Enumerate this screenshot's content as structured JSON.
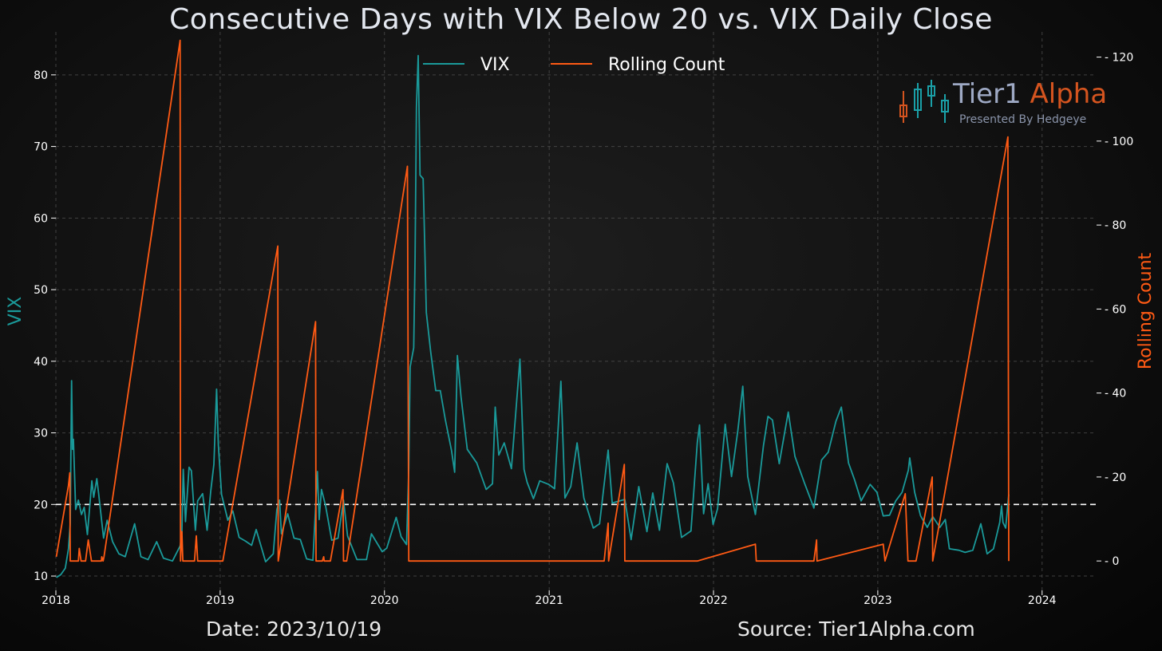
{
  "title": "Consecutive Days with VIX Below 20 vs. VIX Daily Close",
  "footer": {
    "date": "Date: 2023/10/19",
    "source": "Source: Tier1Alpha.com"
  },
  "logo": {
    "name_a": "Tier1",
    "name_b": "Alpha",
    "tagline": "Presented By Hedgeye"
  },
  "colors": {
    "vix": "#1a9a9a",
    "rolling": "#ff5a14",
    "threshold": "#ffffff",
    "grid": "#555555",
    "tick": "#ffffff"
  },
  "chart_data": {
    "type": "line",
    "xlabel": "",
    "ylabel": "VIX",
    "y2label": "Rolling Count",
    "xlim": [
      "2018-01-01",
      "2024-05-01"
    ],
    "ylim": [
      8,
      86
    ],
    "y2lim": [
      -7,
      126
    ],
    "xticks": [
      "2018",
      "2019",
      "2020",
      "2021",
      "2022",
      "2023",
      "2024"
    ],
    "yticks": [
      10,
      20,
      30,
      40,
      50,
      60,
      70,
      80
    ],
    "y2ticks": [
      0,
      20,
      40,
      60,
      80,
      100,
      120
    ],
    "threshold": 20,
    "legend": {
      "position": "top-center"
    },
    "grid": true,
    "series": [
      {
        "name": "VIX",
        "axis": "left",
        "points": [
          [
            "2018-01-02",
            9.8
          ],
          [
            "2018-01-12",
            10.2
          ],
          [
            "2018-01-22",
            11.1
          ],
          [
            "2018-01-29",
            13.8
          ],
          [
            "2018-02-02",
            17.3
          ],
          [
            "2018-02-05",
            37.3
          ],
          [
            "2018-02-07",
            27.7
          ],
          [
            "2018-02-09",
            29.1
          ],
          [
            "2018-02-14",
            19.3
          ],
          [
            "2018-02-20",
            20.6
          ],
          [
            "2018-02-27",
            18.6
          ],
          [
            "2018-03-05",
            19.6
          ],
          [
            "2018-03-12",
            15.8
          ],
          [
            "2018-03-22",
            23.3
          ],
          [
            "2018-03-26",
            21.0
          ],
          [
            "2018-04-02",
            23.6
          ],
          [
            "2018-04-06",
            21.5
          ],
          [
            "2018-04-17",
            15.3
          ],
          [
            "2018-04-25",
            17.8
          ],
          [
            "2018-05-07",
            14.8
          ],
          [
            "2018-05-21",
            13.1
          ],
          [
            "2018-06-04",
            12.7
          ],
          [
            "2018-06-25",
            17.3
          ],
          [
            "2018-07-09",
            12.7
          ],
          [
            "2018-07-25",
            12.3
          ],
          [
            "2018-08-13",
            14.8
          ],
          [
            "2018-08-28",
            12.5
          ],
          [
            "2018-09-17",
            12.1
          ],
          [
            "2018-10-04",
            14.2
          ],
          [
            "2018-10-08",
            16.0
          ],
          [
            "2018-10-11",
            24.9
          ],
          [
            "2018-10-16",
            17.6
          ],
          [
            "2018-10-24",
            25.2
          ],
          [
            "2018-10-29",
            24.7
          ],
          [
            "2018-11-07",
            16.4
          ],
          [
            "2018-11-12",
            20.5
          ],
          [
            "2018-11-23",
            21.5
          ],
          [
            "2018-12-03",
            16.4
          ],
          [
            "2018-12-11",
            21.8
          ],
          [
            "2018-12-18",
            25.6
          ],
          [
            "2018-12-24",
            36.1
          ],
          [
            "2018-12-28",
            28.3
          ],
          [
            "2019-01-04",
            21.4
          ],
          [
            "2019-01-18",
            17.8
          ],
          [
            "2019-01-29",
            19.1
          ],
          [
            "2019-02-12",
            15.4
          ],
          [
            "2019-02-26",
            14.9
          ],
          [
            "2019-03-12",
            14.3
          ],
          [
            "2019-03-22",
            16.5
          ],
          [
            "2019-04-12",
            12.0
          ],
          [
            "2019-04-29",
            13.1
          ],
          [
            "2019-05-07",
            19.3
          ],
          [
            "2019-05-13",
            20.6
          ],
          [
            "2019-05-17",
            15.9
          ],
          [
            "2019-05-31",
            18.7
          ],
          [
            "2019-06-14",
            15.3
          ],
          [
            "2019-06-28",
            15.1
          ],
          [
            "2019-07-12",
            12.4
          ],
          [
            "2019-07-26",
            12.2
          ],
          [
            "2019-08-05",
            24.6
          ],
          [
            "2019-08-09",
            17.9
          ],
          [
            "2019-08-14",
            22.1
          ],
          [
            "2019-08-23",
            19.9
          ],
          [
            "2019-09-06",
            15.0
          ],
          [
            "2019-09-20",
            15.3
          ],
          [
            "2019-10-02",
            20.6
          ],
          [
            "2019-10-11",
            15.6
          ],
          [
            "2019-11-01",
            12.3
          ],
          [
            "2019-11-22",
            12.3
          ],
          [
            "2019-12-03",
            15.9
          ],
          [
            "2019-12-27",
            13.4
          ],
          [
            "2020-01-06",
            13.9
          ],
          [
            "2020-01-27",
            18.2
          ],
          [
            "2020-02-07",
            15.5
          ],
          [
            "2020-02-19",
            14.4
          ],
          [
            "2020-02-24",
            25.0
          ],
          [
            "2020-02-27",
            39.2
          ],
          [
            "2020-03-06",
            41.9
          ],
          [
            "2020-03-09",
            54.5
          ],
          [
            "2020-03-12",
            75.5
          ],
          [
            "2020-03-16",
            82.7
          ],
          [
            "2020-03-20",
            66.0
          ],
          [
            "2020-03-27",
            65.5
          ],
          [
            "2020-04-03",
            46.8
          ],
          [
            "2020-04-13",
            41.2
          ],
          [
            "2020-04-24",
            35.9
          ],
          [
            "2020-05-04",
            35.9
          ],
          [
            "2020-05-15",
            31.9
          ],
          [
            "2020-05-29",
            27.5
          ],
          [
            "2020-06-05",
            24.5
          ],
          [
            "2020-06-11",
            40.8
          ],
          [
            "2020-06-19",
            35.1
          ],
          [
            "2020-07-03",
            27.7
          ],
          [
            "2020-07-24",
            25.8
          ],
          [
            "2020-08-14",
            22.1
          ],
          [
            "2020-08-28",
            22.9
          ],
          [
            "2020-09-03",
            33.6
          ],
          [
            "2020-09-11",
            26.9
          ],
          [
            "2020-09-23",
            28.6
          ],
          [
            "2020-10-09",
            25.0
          ],
          [
            "2020-10-28",
            40.3
          ],
          [
            "2020-11-06",
            24.9
          ],
          [
            "2020-11-13",
            23.1
          ],
          [
            "2020-11-27",
            20.8
          ],
          [
            "2020-12-11",
            23.3
          ],
          [
            "2020-12-31",
            22.8
          ],
          [
            "2021-01-13",
            22.2
          ],
          [
            "2021-01-27",
            37.2
          ],
          [
            "2021-02-05",
            20.9
          ],
          [
            "2021-02-18",
            22.5
          ],
          [
            "2021-03-04",
            28.6
          ],
          [
            "2021-03-19",
            20.9
          ],
          [
            "2021-04-09",
            16.7
          ],
          [
            "2021-04-23",
            17.3
          ],
          [
            "2021-05-12",
            27.6
          ],
          [
            "2021-05-21",
            20.2
          ],
          [
            "2021-06-18",
            20.7
          ],
          [
            "2021-07-02",
            15.1
          ],
          [
            "2021-07-19",
            22.5
          ],
          [
            "2021-08-06",
            16.2
          ],
          [
            "2021-08-19",
            21.6
          ],
          [
            "2021-09-03",
            16.4
          ],
          [
            "2021-09-20",
            25.7
          ],
          [
            "2021-10-04",
            23.0
          ],
          [
            "2021-10-22",
            15.4
          ],
          [
            "2021-11-12",
            16.3
          ],
          [
            "2021-11-26",
            28.6
          ],
          [
            "2021-12-01",
            31.1
          ],
          [
            "2021-12-10",
            18.7
          ],
          [
            "2021-12-20",
            22.9
          ],
          [
            "2021-12-31",
            17.2
          ],
          [
            "2022-01-10",
            19.4
          ],
          [
            "2022-01-27",
            31.2
          ],
          [
            "2022-02-10",
            23.9
          ],
          [
            "2022-02-24",
            30.3
          ],
          [
            "2022-03-07",
            36.5
          ],
          [
            "2022-03-18",
            23.9
          ],
          [
            "2022-04-04",
            18.6
          ],
          [
            "2022-04-22",
            28.2
          ],
          [
            "2022-05-02",
            32.3
          ],
          [
            "2022-05-12",
            31.8
          ],
          [
            "2022-05-27",
            25.7
          ],
          [
            "2022-06-16",
            32.9
          ],
          [
            "2022-07-01",
            26.7
          ],
          [
            "2022-07-22",
            23.0
          ],
          [
            "2022-08-12",
            19.5
          ],
          [
            "2022-08-29",
            26.2
          ],
          [
            "2022-09-13",
            27.3
          ],
          [
            "2022-09-30",
            31.6
          ],
          [
            "2022-10-12",
            33.6
          ],
          [
            "2022-10-28",
            25.8
          ],
          [
            "2022-11-10",
            23.5
          ],
          [
            "2022-11-25",
            20.5
          ],
          [
            "2022-12-15",
            22.8
          ],
          [
            "2022-12-30",
            21.7
          ],
          [
            "2023-01-13",
            18.4
          ],
          [
            "2023-01-27",
            18.5
          ],
          [
            "2023-02-10",
            20.5
          ],
          [
            "2023-02-24",
            21.7
          ],
          [
            "2023-03-10",
            24.8
          ],
          [
            "2023-03-13",
            26.5
          ],
          [
            "2023-03-24",
            21.7
          ],
          [
            "2023-04-06",
            18.4
          ],
          [
            "2023-04-21",
            16.8
          ],
          [
            "2023-05-03",
            18.3
          ],
          [
            "2023-05-19",
            16.8
          ],
          [
            "2023-05-31",
            17.9
          ],
          [
            "2023-06-09",
            13.8
          ],
          [
            "2023-06-30",
            13.6
          ],
          [
            "2023-07-14",
            13.3
          ],
          [
            "2023-07-31",
            13.6
          ],
          [
            "2023-08-18",
            17.3
          ],
          [
            "2023-09-01",
            13.1
          ],
          [
            "2023-09-15",
            13.8
          ],
          [
            "2023-09-29",
            17.5
          ],
          [
            "2023-10-03",
            19.8
          ],
          [
            "2023-10-06",
            17.5
          ],
          [
            "2023-10-12",
            16.7
          ],
          [
            "2023-10-19",
            21.4
          ]
        ]
      },
      {
        "name": "Rolling Count",
        "axis": "right",
        "points": [
          [
            "2018-01-02",
            1
          ],
          [
            "2018-01-29",
            18
          ],
          [
            "2018-02-01",
            21
          ],
          [
            "2018-02-02",
            0
          ],
          [
            "2018-02-06",
            0
          ],
          [
            "2018-02-20",
            0
          ],
          [
            "2018-02-22",
            3
          ],
          [
            "2018-02-26",
            0
          ],
          [
            "2018-03-08",
            0
          ],
          [
            "2018-03-14",
            5
          ],
          [
            "2018-03-21",
            0
          ],
          [
            "2018-04-12",
            0
          ],
          [
            "2018-04-13",
            1
          ],
          [
            "2018-04-16",
            0
          ],
          [
            "2018-04-18",
            1
          ],
          [
            "2018-10-04",
            124
          ],
          [
            "2018-10-05",
            0
          ],
          [
            "2018-10-08",
            7
          ],
          [
            "2018-10-10",
            0
          ],
          [
            "2018-11-05",
            0
          ],
          [
            "2018-11-09",
            6
          ],
          [
            "2018-11-12",
            0
          ],
          [
            "2018-12-31",
            0
          ],
          [
            "2019-01-07",
            0
          ],
          [
            "2019-05-09",
            75
          ],
          [
            "2019-05-10",
            0
          ],
          [
            "2019-08-01",
            57
          ],
          [
            "2019-08-02",
            0
          ],
          [
            "2019-08-16",
            0
          ],
          [
            "2019-08-19",
            1
          ],
          [
            "2019-08-20",
            0
          ],
          [
            "2019-09-03",
            0
          ],
          [
            "2019-10-01",
            17
          ],
          [
            "2019-10-02",
            0
          ],
          [
            "2019-10-09",
            0
          ],
          [
            "2020-02-21",
            94
          ],
          [
            "2020-02-24",
            0
          ],
          [
            "2021-05-03",
            0
          ],
          [
            "2021-05-12",
            9
          ],
          [
            "2021-05-13",
            0
          ],
          [
            "2021-06-17",
            23
          ],
          [
            "2021-06-18",
            0
          ],
          [
            "2021-07-16",
            0
          ],
          [
            "2021-07-19",
            0
          ],
          [
            "2021-09-17",
            0
          ],
          [
            "2021-09-20",
            0
          ],
          [
            "2021-11-25",
            0
          ],
          [
            "2021-11-26",
            0
          ],
          [
            "2022-04-04",
            4
          ],
          [
            "2022-04-06",
            0
          ],
          [
            "2022-08-12",
            0
          ],
          [
            "2022-08-18",
            5
          ],
          [
            "2022-08-19",
            0
          ],
          [
            "2023-01-13",
            4
          ],
          [
            "2023-01-17",
            0
          ],
          [
            "2023-03-03",
            16
          ],
          [
            "2023-03-09",
            0
          ],
          [
            "2023-03-27",
            0
          ],
          [
            "2023-05-02",
            20
          ],
          [
            "2023-05-03",
            0
          ],
          [
            "2023-10-17",
            101
          ],
          [
            "2023-10-19",
            0
          ]
        ]
      }
    ]
  }
}
